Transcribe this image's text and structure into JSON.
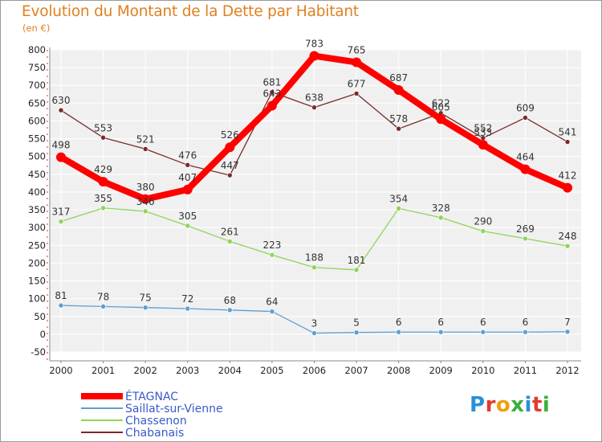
{
  "title": "Evolution du Montant de la Dette par Habitant",
  "subtitle": "(en €)",
  "logo": {
    "text": "Proxiti",
    "colors": [
      "#2a8fd6",
      "#e23c2a",
      "#f0a010",
      "#3cae3c",
      "#2a8fd6",
      "#e23c2a",
      "#3cae3c"
    ]
  },
  "chart_data": {
    "type": "line",
    "x": [
      "2000",
      "2001",
      "2002",
      "2003",
      "2004",
      "2005",
      "2006",
      "2007",
      "2008",
      "2009",
      "2010",
      "2011",
      "2012"
    ],
    "ylim": [
      -50,
      800
    ],
    "yticks": [
      -50,
      0,
      50,
      100,
      150,
      200,
      250,
      300,
      350,
      400,
      450,
      500,
      550,
      600,
      650,
      700,
      750,
      800
    ],
    "grid": true,
    "legend": "bottom-left",
    "series": [
      {
        "name": "Chabanais",
        "color": "#7a2a2a",
        "values": [
          630,
          553,
          521,
          476,
          447,
          681,
          638,
          677,
          578,
          622,
          552,
          609,
          541
        ]
      },
      {
        "name": "Chassenon",
        "color": "#8ed45a",
        "values": [
          317,
          355,
          346,
          305,
          261,
          223,
          188,
          181,
          354,
          328,
          290,
          269,
          248
        ]
      },
      {
        "name": "Saillat-sur-Vienne",
        "color": "#5f9fd2",
        "values": [
          81,
          78,
          75,
          72,
          68,
          64,
          3,
          5,
          6,
          6,
          6,
          6,
          7
        ]
      },
      {
        "name": "ÉTAGNAC",
        "color": "#ff0000",
        "values": [
          498,
          429,
          380,
          407,
          526,
          643,
          783,
          765,
          687,
          605,
          533,
          464,
          412
        ]
      }
    ],
    "value_labels": [
      [
        "630",
        "553",
        "521",
        "476",
        "447",
        "681",
        "638",
        "677",
        "578",
        "622",
        "552",
        "609",
        "541"
      ],
      [
        "317",
        "355",
        "346",
        "305",
        "261",
        "223",
        "188",
        "181",
        "354",
        "328",
        "290",
        "269",
        "248"
      ],
      [
        "81",
        "78",
        "75",
        "72",
        "68",
        "64",
        "3",
        "5",
        "6",
        "6",
        "6",
        "6",
        "7"
      ],
      [
        "498",
        "429",
        "380",
        "407",
        "526",
        "643",
        "783",
        "765",
        "687",
        "605",
        "533",
        "464",
        "412"
      ]
    ],
    "legend_order": [
      "ÉTAGNAC",
      "Saillat-sur-Vienne",
      "Chassenon",
      "Chabanais"
    ]
  }
}
